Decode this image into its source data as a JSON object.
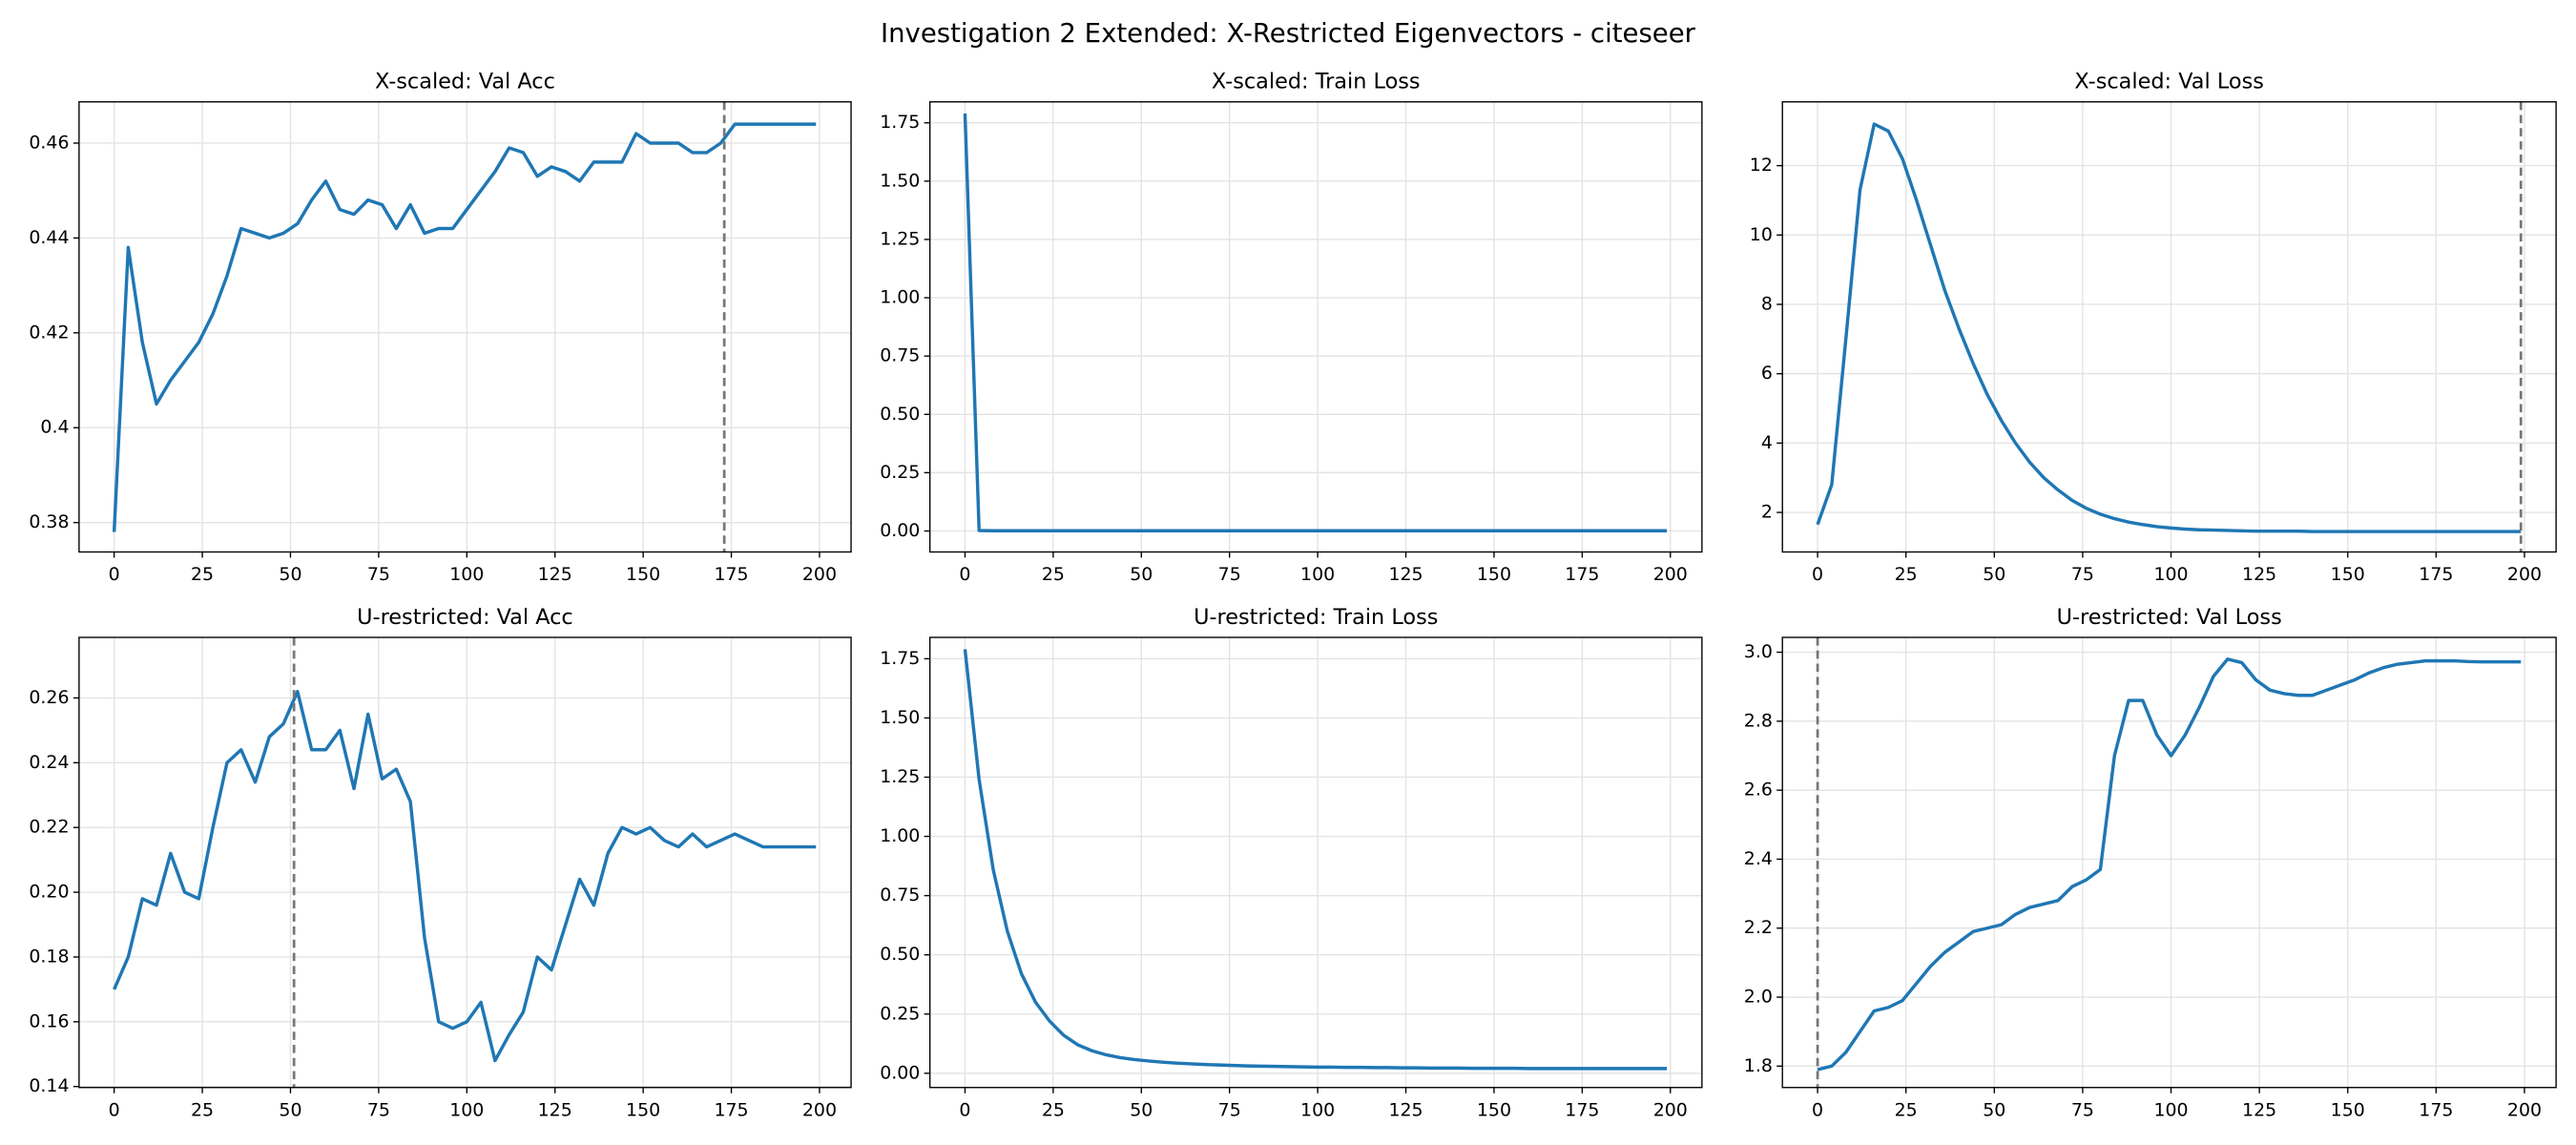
{
  "title": "Investigation 2 Extended: X-Restricted Eigenvectors - citeseer",
  "chart_data": [
    {
      "type": "line",
      "title": "X-scaled: Val Acc",
      "color": "#1f77b4",
      "grid": true,
      "vline": 173,
      "x": [
        0,
        4,
        8,
        12,
        16,
        20,
        24,
        28,
        32,
        36,
        40,
        44,
        48,
        52,
        56,
        60,
        64,
        68,
        72,
        76,
        80,
        84,
        88,
        92,
        96,
        100,
        104,
        108,
        112,
        116,
        120,
        124,
        128,
        132,
        136,
        140,
        144,
        148,
        152,
        156,
        160,
        164,
        168,
        172,
        176,
        180,
        184,
        188,
        192,
        196,
        199
      ],
      "values": [
        0.378,
        0.438,
        0.418,
        0.405,
        0.41,
        0.414,
        0.418,
        0.424,
        0.432,
        0.442,
        0.441,
        0.44,
        0.441,
        0.443,
        0.448,
        0.452,
        0.446,
        0.445,
        0.448,
        0.447,
        0.442,
        0.447,
        0.441,
        0.442,
        0.442,
        0.446,
        0.45,
        0.454,
        0.459,
        0.458,
        0.453,
        0.455,
        0.454,
        0.452,
        0.456,
        0.456,
        0.456,
        0.462,
        0.46,
        0.46,
        0.46,
        0.458,
        0.458,
        0.46,
        0.464,
        0.464,
        0.464,
        0.464,
        0.464,
        0.464,
        0.464
      ],
      "xlim": [
        -9.95,
        208.95
      ],
      "xticks": [
        0,
        25,
        50,
        75,
        100,
        125,
        150,
        175,
        200
      ],
      "ylim": [
        0.3738,
        0.4687
      ],
      "yticks": [
        0.38,
        0.4,
        0.42,
        0.44,
        0.46
      ]
    },
    {
      "type": "line",
      "title": "X-scaled: Train Loss",
      "color": "#1f77b4",
      "grid": true,
      "x": [
        0,
        4,
        8,
        12,
        16,
        20,
        24,
        28,
        32,
        36,
        40,
        44,
        48,
        52,
        56,
        60,
        64,
        68,
        72,
        76,
        80,
        84,
        88,
        92,
        96,
        100,
        104,
        108,
        112,
        116,
        120,
        124,
        128,
        132,
        136,
        140,
        144,
        148,
        152,
        156,
        160,
        164,
        168,
        172,
        176,
        180,
        184,
        188,
        192,
        196,
        199
      ],
      "values": [
        1.79,
        0.002,
        0.001,
        0.001,
        0.001,
        0.001,
        0.001,
        0.001,
        0.001,
        0.001,
        0.001,
        0.001,
        0.001,
        0.001,
        0.001,
        0.001,
        0.001,
        0.001,
        0.001,
        0.001,
        0.001,
        0.001,
        0.001,
        0.001,
        0.001,
        0.001,
        0.001,
        0.001,
        0.001,
        0.001,
        0.001,
        0.001,
        0.001,
        0.001,
        0.001,
        0.001,
        0.001,
        0.001,
        0.001,
        0.001,
        0.001,
        0.001,
        0.001,
        0.001,
        0.001,
        0.001,
        0.001,
        0.001,
        0.001,
        0.001,
        0.001
      ],
      "xlim": [
        -9.95,
        208.95
      ],
      "xticks": [
        0,
        25,
        50,
        75,
        100,
        125,
        150,
        175,
        200
      ],
      "ylim": [
        -0.09,
        1.84
      ],
      "yticks": [
        {
          "value": 0,
          "label": "0.00"
        },
        0.25,
        {
          "value": 0.5,
          "label": "0.50"
        },
        0.75,
        {
          "value": 1,
          "label": "1.00"
        },
        1.25,
        {
          "value": 1.5,
          "label": "1.50"
        },
        1.75
      ]
    },
    {
      "type": "line",
      "title": "X-scaled: Val Loss",
      "color": "#1f77b4",
      "grid": true,
      "vline": 199,
      "x": [
        0,
        4,
        8,
        12,
        16,
        20,
        24,
        28,
        32,
        36,
        40,
        44,
        48,
        52,
        56,
        60,
        64,
        68,
        72,
        76,
        80,
        84,
        88,
        92,
        96,
        100,
        104,
        108,
        112,
        116,
        120,
        124,
        128,
        132,
        136,
        140,
        144,
        148,
        152,
        156,
        160,
        164,
        168,
        172,
        176,
        180,
        184,
        188,
        192,
        196,
        199
      ],
      "values": [
        1.65,
        2.8,
        7.0,
        11.3,
        13.2,
        13.0,
        12.2,
        11.0,
        9.7,
        8.4,
        7.3,
        6.3,
        5.4,
        4.65,
        4.0,
        3.45,
        3.0,
        2.65,
        2.35,
        2.12,
        1.95,
        1.82,
        1.72,
        1.65,
        1.59,
        1.55,
        1.52,
        1.5,
        1.49,
        1.48,
        1.47,
        1.46,
        1.46,
        1.46,
        1.46,
        1.45,
        1.45,
        1.45,
        1.45,
        1.45,
        1.45,
        1.45,
        1.45,
        1.45,
        1.45,
        1.45,
        1.45,
        1.45,
        1.45,
        1.45,
        1.45
      ],
      "xlim": [
        -9.95,
        208.95
      ],
      "xticks": [
        0,
        25,
        50,
        75,
        100,
        125,
        150,
        175,
        200
      ],
      "ylim": [
        0.86,
        13.84
      ],
      "yticks": [
        2,
        4,
        6,
        8,
        10,
        12
      ]
    },
    {
      "type": "line",
      "title": "U-restricted: Val Acc",
      "color": "#1f77b4",
      "grid": true,
      "vline": 51,
      "x": [
        0,
        4,
        8,
        12,
        16,
        20,
        24,
        28,
        32,
        36,
        40,
        44,
        48,
        52,
        56,
        60,
        64,
        68,
        72,
        76,
        80,
        84,
        88,
        92,
        96,
        100,
        104,
        108,
        112,
        116,
        120,
        124,
        128,
        132,
        136,
        140,
        144,
        148,
        152,
        156,
        160,
        164,
        168,
        172,
        176,
        180,
        184,
        188,
        192,
        196,
        199
      ],
      "values": [
        0.17,
        0.18,
        0.198,
        0.196,
        0.212,
        0.2,
        0.198,
        0.22,
        0.24,
        0.244,
        0.234,
        0.248,
        0.252,
        0.262,
        0.244,
        0.244,
        0.25,
        0.232,
        0.255,
        0.235,
        0.238,
        0.228,
        0.186,
        0.16,
        0.158,
        0.16,
        0.166,
        0.148,
        0.156,
        0.163,
        0.18,
        0.176,
        0.19,
        0.204,
        0.196,
        0.212,
        0.22,
        0.218,
        0.22,
        0.216,
        0.214,
        0.218,
        0.214,
        0.216,
        0.218,
        0.216,
        0.214,
        0.214,
        0.214,
        0.214,
        0.214
      ],
      "xlim": [
        -9.95,
        208.95
      ],
      "xticks": [
        0,
        25,
        50,
        75,
        100,
        125,
        150,
        175,
        200
      ],
      "ylim": [
        0.1397,
        0.2787
      ],
      "yticks": [
        0.14,
        0.16,
        0.18,
        {
          "value": 0.2,
          "label": "0.20"
        },
        0.22,
        0.24,
        0.26
      ]
    },
    {
      "type": "line",
      "title": "U-restricted: Train Loss",
      "color": "#1f77b4",
      "grid": true,
      "x": [
        0,
        4,
        8,
        12,
        16,
        20,
        24,
        28,
        32,
        36,
        40,
        44,
        48,
        52,
        56,
        60,
        64,
        68,
        72,
        76,
        80,
        84,
        88,
        92,
        96,
        100,
        104,
        108,
        112,
        116,
        120,
        124,
        128,
        132,
        136,
        140,
        144,
        148,
        152,
        156,
        160,
        164,
        168,
        172,
        176,
        180,
        184,
        188,
        192,
        196,
        199
      ],
      "values": [
        1.79,
        1.24,
        0.86,
        0.6,
        0.42,
        0.3,
        0.22,
        0.16,
        0.12,
        0.095,
        0.078,
        0.066,
        0.058,
        0.052,
        0.047,
        0.043,
        0.04,
        0.037,
        0.035,
        0.033,
        0.031,
        0.03,
        0.029,
        0.028,
        0.027,
        0.026,
        0.026,
        0.025,
        0.025,
        0.024,
        0.024,
        0.023,
        0.023,
        0.022,
        0.022,
        0.022,
        0.021,
        0.021,
        0.021,
        0.021,
        0.02,
        0.02,
        0.02,
        0.02,
        0.02,
        0.02,
        0.02,
        0.02,
        0.02,
        0.02,
        0.02
      ],
      "xlim": [
        -9.95,
        208.95
      ],
      "xticks": [
        0,
        25,
        50,
        75,
        100,
        125,
        150,
        175,
        200
      ],
      "ylim": [
        -0.06,
        1.84
      ],
      "yticks": [
        {
          "value": 0,
          "label": "0.00"
        },
        0.25,
        {
          "value": 0.5,
          "label": "0.50"
        },
        0.75,
        {
          "value": 1,
          "label": "1.00"
        },
        1.25,
        {
          "value": 1.5,
          "label": "1.50"
        },
        1.75
      ]
    },
    {
      "type": "line",
      "title": "U-restricted: Val Loss",
      "color": "#1f77b4",
      "grid": true,
      "vline": 0,
      "x": [
        0,
        4,
        8,
        12,
        16,
        20,
        24,
        28,
        32,
        36,
        40,
        44,
        48,
        52,
        56,
        60,
        64,
        68,
        72,
        76,
        80,
        84,
        88,
        92,
        96,
        100,
        104,
        108,
        112,
        116,
        120,
        124,
        128,
        132,
        136,
        140,
        144,
        148,
        152,
        156,
        160,
        164,
        168,
        172,
        176,
        180,
        184,
        188,
        192,
        196,
        199
      ],
      "values": [
        1.79,
        1.8,
        1.84,
        1.9,
        1.96,
        1.97,
        1.99,
        2.04,
        2.09,
        2.13,
        2.16,
        2.19,
        2.2,
        2.21,
        2.24,
        2.26,
        2.27,
        2.28,
        2.32,
        2.34,
        2.37,
        2.7,
        2.86,
        2.86,
        2.76,
        2.7,
        2.76,
        2.84,
        2.93,
        2.98,
        2.97,
        2.92,
        2.89,
        2.88,
        2.875,
        2.875,
        2.89,
        2.905,
        2.92,
        2.94,
        2.955,
        2.965,
        2.97,
        2.975,
        2.975,
        2.975,
        2.973,
        2.972,
        2.972,
        2.972,
        2.972
      ],
      "xlim": [
        -9.95,
        208.95
      ],
      "xticks": [
        0,
        25,
        50,
        75,
        100,
        125,
        150,
        175,
        200
      ],
      "ylim": [
        1.738,
        3.043
      ],
      "yticks": [
        1.8,
        {
          "value": 2,
          "label": "2.0"
        },
        2.2,
        2.4,
        2.6,
        2.8,
        {
          "value": 3,
          "label": "3.0"
        }
      ]
    }
  ]
}
